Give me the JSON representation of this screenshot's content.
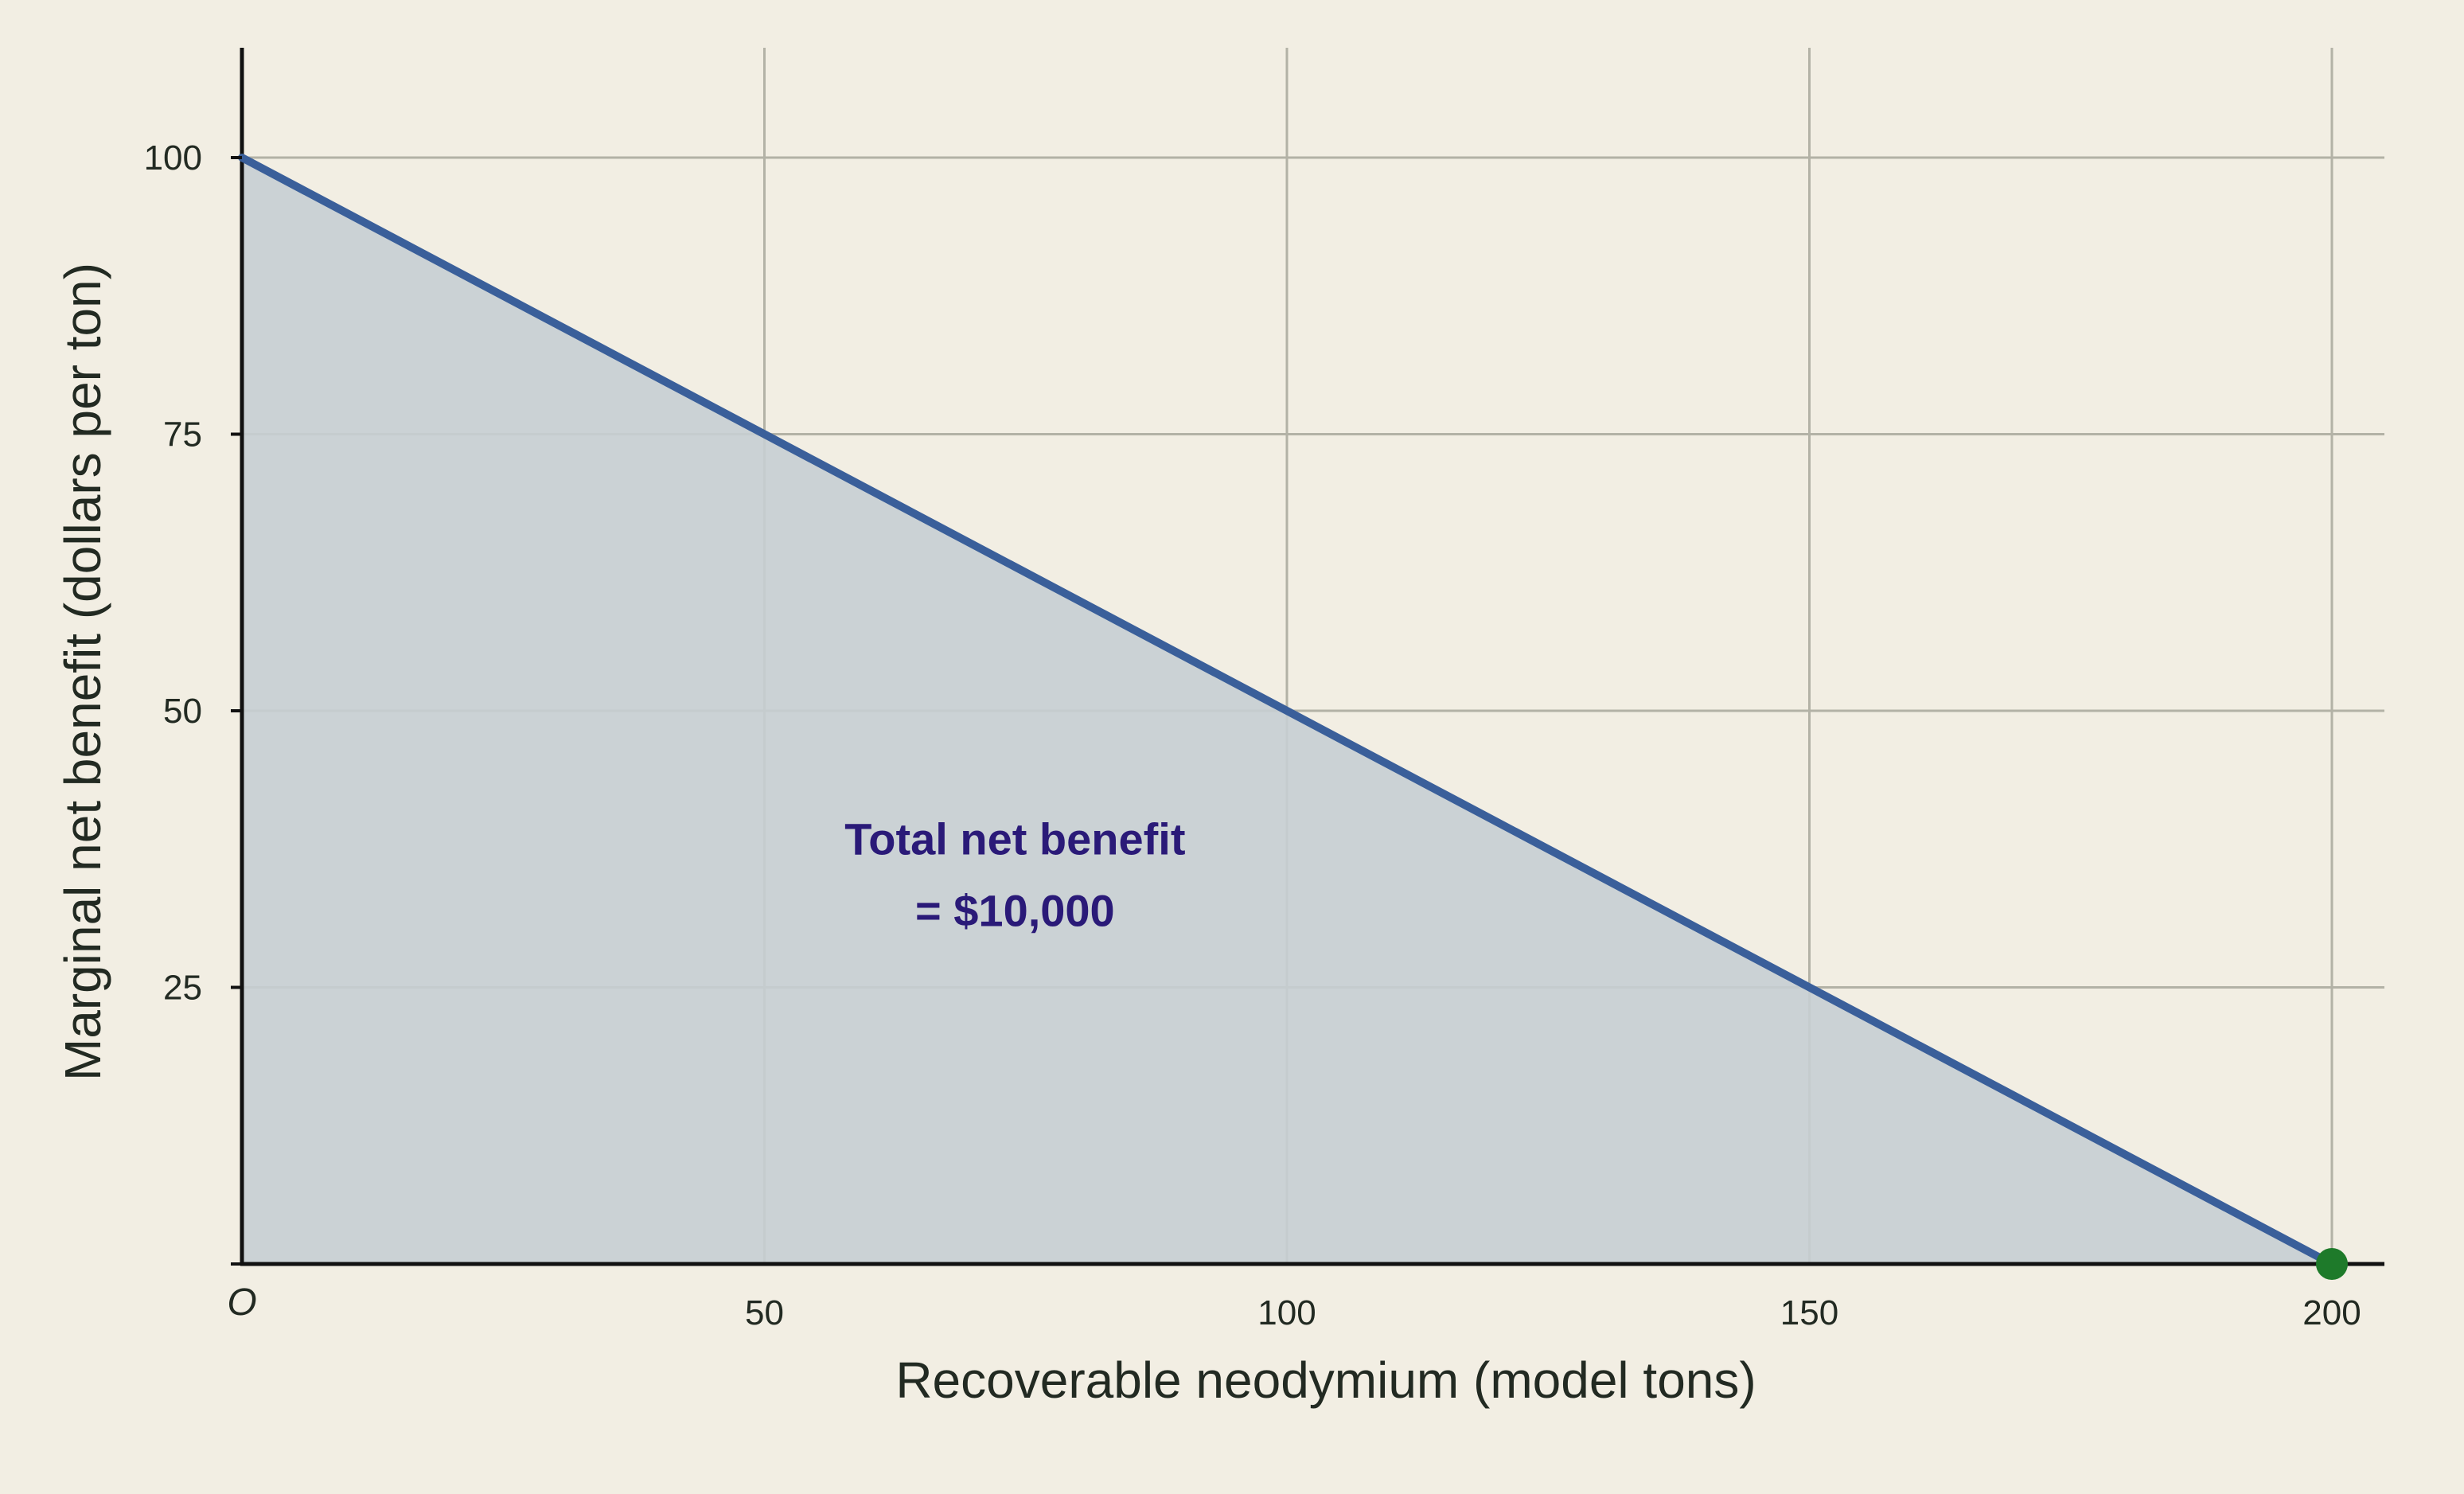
{
  "chart_data": {
    "type": "area",
    "title": "",
    "xlabel": "Recoverable neodymium (model tons)",
    "ylabel": "Marginal net benefit (dollars per ton)",
    "xlim": [
      0,
      205
    ],
    "ylim": [
      0,
      110
    ],
    "x_ticks": [
      50,
      100,
      150,
      200
    ],
    "y_ticks": [
      25,
      50,
      75,
      100
    ],
    "origin_label": "O",
    "grid": true,
    "legend": "none",
    "series": [
      {
        "x": [
          0,
          200
        ],
        "y": [
          100,
          0
        ],
        "fill_to_zero": true
      }
    ],
    "highlight_point": {
      "x": 200,
      "y": 0
    },
    "annotation": {
      "lines": [
        "Total net benefit",
        "= $10,000"
      ],
      "x": 72,
      "y": 37
    },
    "colors": {
      "background": "#f2eee3",
      "line": "#3a5f9a",
      "fill": "#c7ced3",
      "grid": "#b3b2a6",
      "axis": "#111111",
      "point": "#1e7a2a",
      "annotation": "#2a1a78"
    }
  }
}
